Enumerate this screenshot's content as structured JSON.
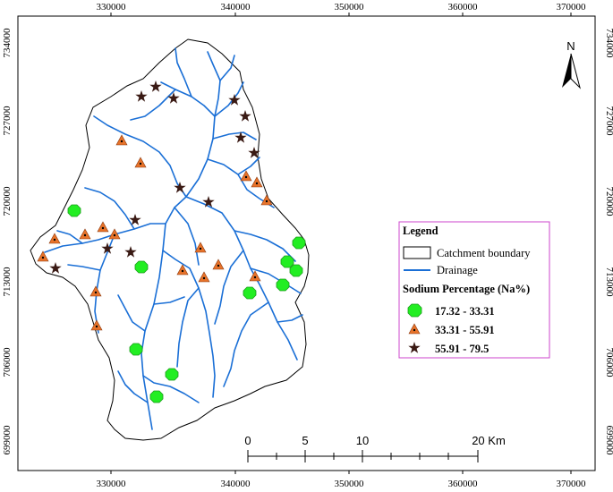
{
  "map": {
    "north_arrow_label": "N",
    "x_ticks": [
      "330000",
      "340000",
      "350000",
      "360000",
      "370000"
    ],
    "y_ticks": [
      "734000",
      "727000",
      "720000",
      "713000",
      "706000",
      "699000"
    ]
  },
  "legend": {
    "title": "Legend",
    "boundary_label": "Catchment boundary",
    "drainage_label": "Drainage",
    "classes_title": "Sodium Percentage (Na%)",
    "classes": [
      {
        "label": "17.32 - 33.31",
        "symbol": "octagon",
        "color": "#22ee22"
      },
      {
        "label": "33.31 - 55.91",
        "symbol": "triangle",
        "color": "#e8732a"
      },
      {
        "label": "55.91 - 79.5",
        "symbol": "star",
        "color": "#3a1a14"
      }
    ]
  },
  "scale_bar": {
    "labels": [
      "0",
      "5",
      "10",
      "20 Km"
    ]
  },
  "colors": {
    "drainage": "#1a6fd6",
    "legend_border": "#cc44cc",
    "frame": "#000000"
  }
}
